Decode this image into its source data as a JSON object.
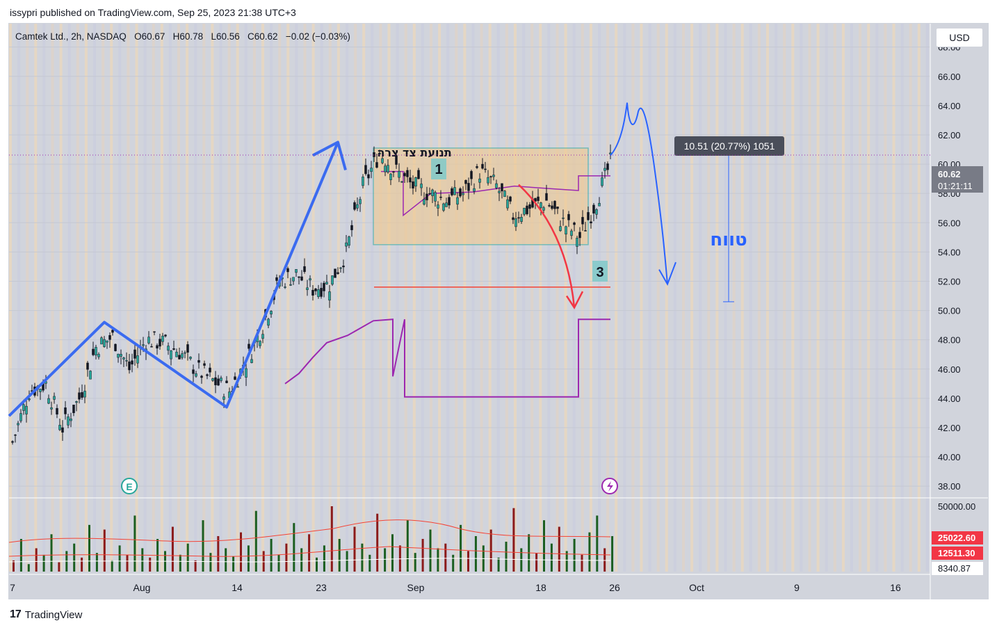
{
  "header": {
    "publisher_text": "issypri published on TradingView.com, Sep 25, 2023 21:38 UTC+3"
  },
  "toolbar": {
    "currency": "USD"
  },
  "symbol": {
    "name": "Camtek Ltd., 2h, NASDAQ",
    "open": "O60.67",
    "high": "H60.78",
    "low": "L60.56",
    "close": "C60.62",
    "change": "−0.02 (−0.03%)"
  },
  "footer": {
    "brand": "TradingView"
  },
  "colors": {
    "plot_bg": "#d1d4dc",
    "up": "#26a69a",
    "down": "#131722",
    "wave": "#3b5bdb",
    "purple": "#9c27b0",
    "red_line": "#f44336",
    "box_fill": "#f3c88a",
    "box_border": "#26a69a",
    "projection": "#2962ff",
    "arrow_red": "#f23645"
  },
  "chart_data": {
    "type": "candlestick",
    "price_axis": {
      "ticks": [
        "68.00",
        "66.00",
        "64.00",
        "62.00",
        "60.00",
        "58.00",
        "56.00",
        "54.00",
        "52.00",
        "50.00",
        "48.00",
        "46.00",
        "44.00",
        "42.00",
        "40.00",
        "38.00"
      ],
      "range": [
        37.2,
        69.6
      ]
    },
    "time_axis": {
      "labels": [
        "7",
        "Aug",
        "14",
        "23",
        "Sep",
        "18",
        "26",
        "Oct",
        "9",
        "16"
      ]
    },
    "last_price": {
      "value": "60.62",
      "countdown": "01:21:11"
    },
    "volume_axis": {
      "labels": [
        "50000.00",
        "25022.60",
        "12511.30",
        "8340.87"
      ]
    },
    "annotations": {
      "box_label": "תנועת צד צרה",
      "marker_1": "1",
      "marker_3": "3",
      "range_label": "טווח",
      "measure_text": "10.51 (20.77%) 1051",
      "earnings_icon": "E",
      "dividend_icon": "lightning-icon"
    },
    "box": {
      "top": 61.1,
      "bottom": 54.5
    },
    "red_level": 51.6,
    "wave": [
      [
        42.8,
        0
      ],
      [
        49.2,
        1
      ],
      [
        43.4,
        2
      ],
      [
        61.5,
        3
      ]
    ],
    "price_path": [
      [
        0,
        41.0
      ],
      [
        6,
        44.5
      ],
      [
        12,
        45.0
      ],
      [
        18,
        42.0
      ],
      [
        24,
        44.0
      ],
      [
        30,
        47.5
      ],
      [
        36,
        48.2
      ],
      [
        42,
        46.0
      ],
      [
        48,
        48.0
      ],
      [
        54,
        47.8
      ],
      [
        60,
        47.2
      ],
      [
        66,
        46.0
      ],
      [
        72,
        45.2
      ],
      [
        78,
        44.5
      ],
      [
        84,
        46.5
      ],
      [
        90,
        49.0
      ],
      [
        96,
        52.0
      ],
      [
        102,
        52.5
      ],
      [
        108,
        51.5
      ],
      [
        114,
        51.8
      ],
      [
        120,
        54.0
      ],
      [
        126,
        58.5
      ],
      [
        132,
        60.8
      ],
      [
        138,
        59.5
      ],
      [
        144,
        58.5
      ],
      [
        150,
        58.0
      ],
      [
        156,
        57.5
      ],
      [
        162,
        58.0
      ],
      [
        168,
        59.5
      ],
      [
        174,
        58.5
      ],
      [
        180,
        56.5
      ],
      [
        186,
        57.0
      ],
      [
        192,
        57.5
      ],
      [
        198,
        56.0
      ],
      [
        204,
        55.0
      ],
      [
        210,
        57.5
      ],
      [
        216,
        60.6
      ]
    ],
    "projection": [
      [
        60.6,
        0
      ],
      [
        63.8,
        1
      ],
      [
        62.0,
        2
      ],
      [
        62.2,
        3
      ],
      [
        53.0,
        4
      ]
    ],
    "volume_bars": [
      12,
      35,
      8,
      25,
      18,
      40,
      10,
      22,
      30,
      15,
      50,
      20,
      45,
      12,
      28,
      18,
      60,
      25,
      15,
      35,
      22,
      48,
      18,
      30,
      12,
      55,
      20,
      38,
      25,
      16,
      42,
      28,
      65,
      22,
      35,
      18,
      30,
      52,
      25,
      40,
      15,
      28,
      70,
      35,
      22,
      48,
      30,
      18,
      62,
      25,
      40,
      28,
      55,
      20,
      35,
      45,
      25,
      30,
      18,
      50,
      22,
      38,
      28,
      45,
      15,
      32,
      68,
      25,
      40,
      20,
      55,
      30,
      48,
      22,
      35,
      18,
      42,
      60,
      25,
      38
    ]
  }
}
